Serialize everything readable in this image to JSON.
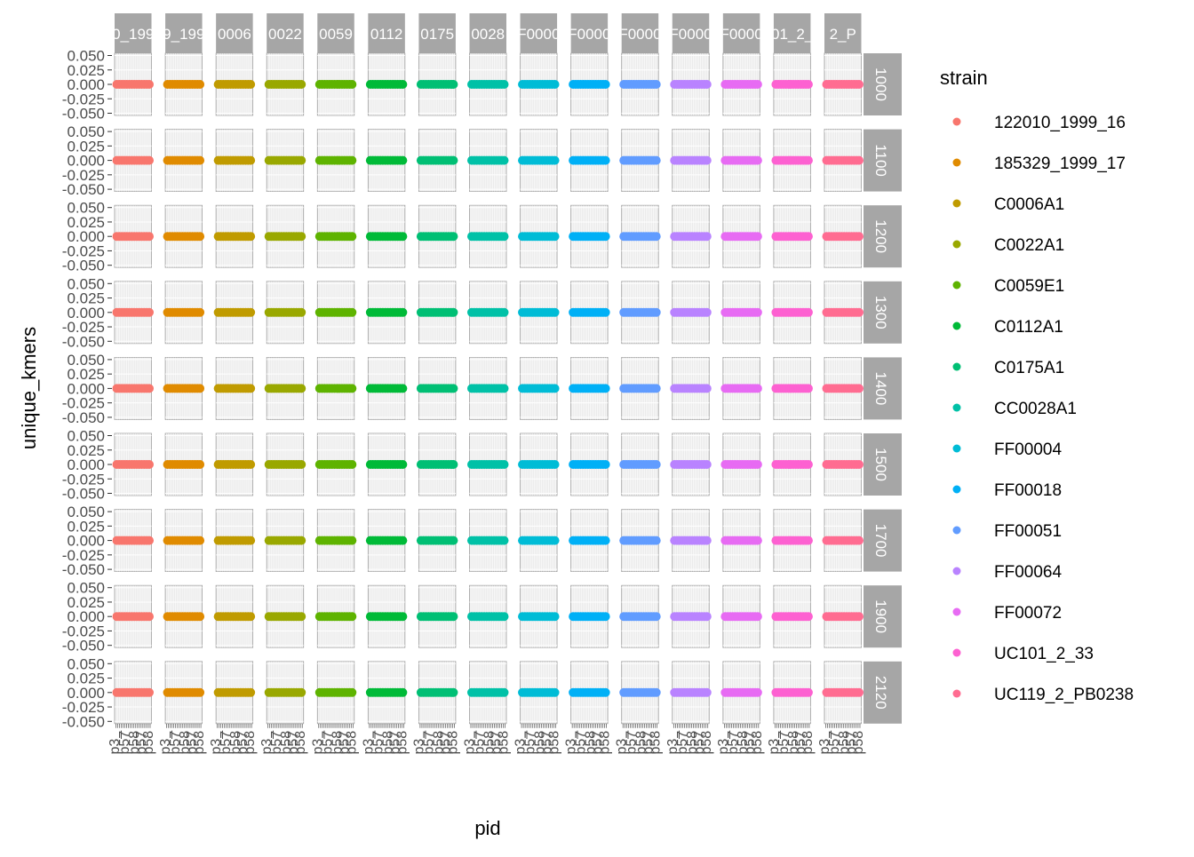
{
  "chart_data": {
    "type": "scatter",
    "facet": "grid",
    "xlabel": "pid",
    "ylabel": "unique_kmers",
    "ylim": [
      -0.05,
      0.05
    ],
    "y_ticks": [
      "0.050",
      "0.025",
      "0.000",
      "-0.025",
      "-0.050"
    ],
    "column_strips": [
      "0_199",
      "9_199",
      "0006",
      "0022",
      "0059",
      "0112",
      "0175",
      "0028",
      "F0000",
      "F0000",
      "F0000",
      "F0000",
      "F0000",
      "01_2_",
      "2_P"
    ],
    "row_strips": [
      "1000",
      "1100",
      "1200",
      "1300",
      "1400",
      "1500",
      "1700",
      "1900",
      "2120"
    ],
    "x_tick_labels_visible": [
      "p3_",
      "p57",
      "p58"
    ],
    "legend": {
      "title": "strain",
      "position": "right",
      "entries": [
        {
          "name": "122010_1999_16",
          "color": "#F8766D"
        },
        {
          "name": "185329_1999_17",
          "color": "#E08B00"
        },
        {
          "name": "C0006A1",
          "color": "#C09B00"
        },
        {
          "name": "C0022A1",
          "color": "#99A800"
        },
        {
          "name": "C0059E1",
          "color": "#5EB300"
        },
        {
          "name": "C0112A1",
          "color": "#00BA38"
        },
        {
          "name": "C0175A1",
          "color": "#00BF74"
        },
        {
          "name": "CC0028A1",
          "color": "#00C1A7"
        },
        {
          "name": "FF00004",
          "color": "#00BCD6"
        },
        {
          "name": "FF00018",
          "color": "#00B0F6"
        },
        {
          "name": "FF00051",
          "color": "#619CFF"
        },
        {
          "name": "FF00064",
          "color": "#B983FF"
        },
        {
          "name": "FF00072",
          "color": "#E76BF3"
        },
        {
          "name": "UC101_2_33",
          "color": "#FD61D1"
        },
        {
          "name": "UC119_2_PB0238",
          "color": "#FF6C91"
        }
      ]
    },
    "series_value": 0.0,
    "panel_background": "#EBEBEB",
    "strip_background": "#A6A6A6",
    "grid": true
  }
}
